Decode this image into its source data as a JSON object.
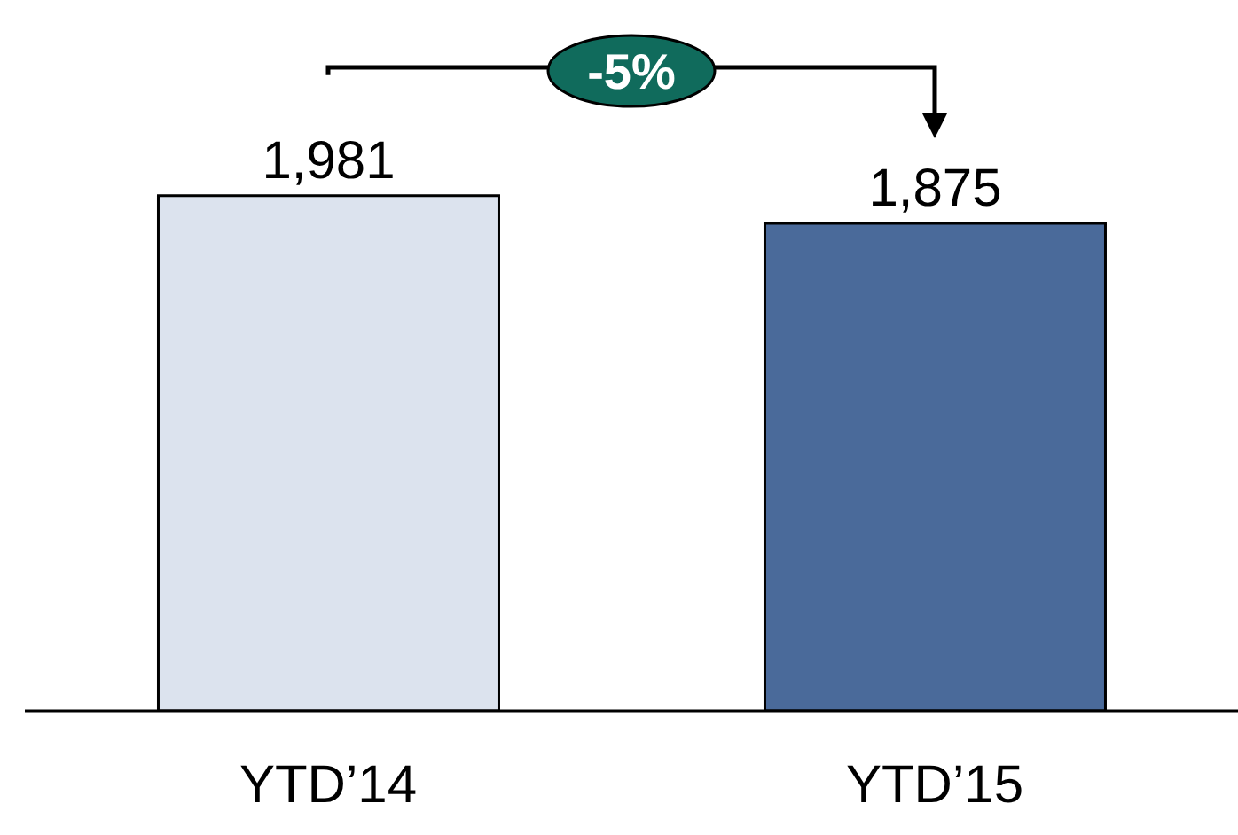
{
  "chart_data": {
    "type": "bar",
    "categories": [
      "YTD’14",
      "YTD’15"
    ],
    "values": [
      1981,
      1875
    ],
    "colors": [
      "#dce3ee",
      "#4a6a9a"
    ],
    "value_labels": [
      "1,981",
      "1,875"
    ],
    "annotations": [
      "-5%"
    ]
  }
}
